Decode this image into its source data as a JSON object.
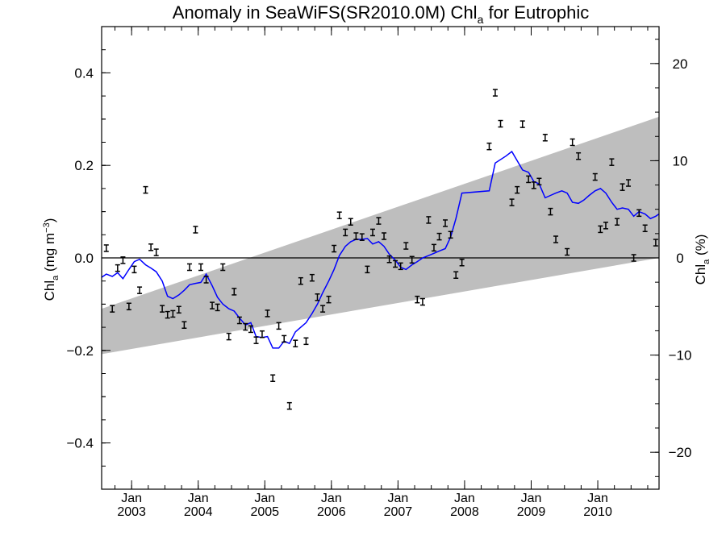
{
  "chart_data": {
    "type": "scatter",
    "title": {
      "main": "Anomaly in SeaWiFS(SR2010.0M) Chl",
      "sub": "a",
      "tail": " for Eutrophic"
    },
    "ylabel_left": {
      "main": "Chl",
      "sub": "a",
      "tail": " (mg m",
      "sup": "−3",
      "end": ")"
    },
    "ylabel_right": {
      "main": "Chl",
      "sub": "a",
      "tail": " (%)"
    },
    "x_range": [
      2002.55,
      2010.92
    ],
    "ylim_left": [
      -0.5,
      0.5
    ],
    "ylim_right": [
      -23.8,
      23.8
    ],
    "x_tick_labels": [
      {
        "x": 2003.0,
        "top": "Jan",
        "bottom": "2003"
      },
      {
        "x": 2004.0,
        "top": "Jan",
        "bottom": "2004"
      },
      {
        "x": 2005.0,
        "top": "Jan",
        "bottom": "2005"
      },
      {
        "x": 2006.0,
        "top": "Jan",
        "bottom": "2006"
      },
      {
        "x": 2007.0,
        "top": "Jan",
        "bottom": "2007"
      },
      {
        "x": 2008.0,
        "top": "Jan",
        "bottom": "2008"
      },
      {
        "x": 2009.0,
        "top": "Jan",
        "bottom": "2009"
      },
      {
        "x": 2010.0,
        "top": "Jan",
        "bottom": "2010"
      }
    ],
    "y_ticks_left": [
      {
        "value": -0.4,
        "label": "−0.4"
      },
      {
        "value": -0.2,
        "label": "−0.2"
      },
      {
        "value": 0.0,
        "label": "0.0"
      },
      {
        "value": 0.2,
        "label": "0.2"
      },
      {
        "value": 0.4,
        "label": "0.4"
      }
    ],
    "y_ticks_right": [
      {
        "value": -20,
        "label": "−20"
      },
      {
        "value": -10,
        "label": "−10"
      },
      {
        "value": 0,
        "label": "0"
      },
      {
        "value": 10,
        "label": "10"
      },
      {
        "value": 20,
        "label": "20"
      }
    ],
    "uncertainty_band": {
      "x": [
        2002.55,
        2010.92
      ],
      "lower": [
        -0.208,
        0.0
      ],
      "upper": [
        -0.11,
        0.305
      ]
    },
    "zero_line": 0.0,
    "points": [
      [
        2002.62,
        0.021
      ],
      [
        2002.71,
        -0.11
      ],
      [
        2002.79,
        -0.022
      ],
      [
        2002.87,
        -0.005
      ],
      [
        2002.96,
        -0.105
      ],
      [
        2003.04,
        -0.025
      ],
      [
        2003.12,
        -0.07
      ],
      [
        2003.21,
        0.147
      ],
      [
        2003.29,
        0.023
      ],
      [
        2003.37,
        0.012
      ],
      [
        2003.46,
        -0.11
      ],
      [
        2003.54,
        -0.123
      ],
      [
        2003.62,
        -0.121
      ],
      [
        2003.71,
        -0.112
      ],
      [
        2003.79,
        -0.145
      ],
      [
        2003.87,
        -0.02
      ],
      [
        2003.96,
        0.061
      ],
      [
        2004.04,
        -0.02
      ],
      [
        2004.12,
        -0.047
      ],
      [
        2004.21,
        -0.103
      ],
      [
        2004.29,
        -0.107
      ],
      [
        2004.37,
        -0.02
      ],
      [
        2004.46,
        -0.17
      ],
      [
        2004.54,
        -0.073
      ],
      [
        2004.62,
        -0.135
      ],
      [
        2004.71,
        -0.149
      ],
      [
        2004.79,
        -0.154
      ],
      [
        2004.87,
        -0.178
      ],
      [
        2004.96,
        -0.165
      ],
      [
        2005.04,
        -0.12
      ],
      [
        2005.12,
        -0.26
      ],
      [
        2005.21,
        -0.147
      ],
      [
        2005.29,
        -0.175
      ],
      [
        2005.37,
        -0.32
      ],
      [
        2005.46,
        -0.185
      ],
      [
        2005.54,
        -0.05
      ],
      [
        2005.62,
        -0.18
      ],
      [
        2005.71,
        -0.043
      ],
      [
        2005.79,
        -0.085
      ],
      [
        2005.87,
        -0.11
      ],
      [
        2005.96,
        -0.09
      ],
      [
        2006.04,
        0.02
      ],
      [
        2006.12,
        0.092
      ],
      [
        2006.21,
        0.055
      ],
      [
        2006.29,
        0.078
      ],
      [
        2006.37,
        0.047
      ],
      [
        2006.46,
        0.045
      ],
      [
        2006.54,
        -0.025
      ],
      [
        2006.62,
        0.055
      ],
      [
        2006.71,
        0.08
      ],
      [
        2006.79,
        0.047
      ],
      [
        2006.87,
        -0.003
      ],
      [
        2006.96,
        -0.013
      ],
      [
        2007.04,
        -0.018
      ],
      [
        2007.12,
        0.026
      ],
      [
        2007.21,
        -0.004
      ],
      [
        2007.29,
        -0.09
      ],
      [
        2007.37,
        -0.095
      ],
      [
        2007.46,
        0.082
      ],
      [
        2007.54,
        0.022
      ],
      [
        2007.62,
        0.046
      ],
      [
        2007.71,
        0.075
      ],
      [
        2007.79,
        0.05
      ],
      [
        2007.87,
        -0.037
      ],
      [
        2007.96,
        -0.01
      ],
      [
        2008.37,
        0.241
      ],
      [
        2008.46,
        0.357
      ],
      [
        2008.54,
        0.29
      ],
      [
        2008.71,
        0.12
      ],
      [
        2008.79,
        0.147
      ],
      [
        2008.87,
        0.289
      ],
      [
        2008.96,
        0.17
      ],
      [
        2009.04,
        0.157
      ],
      [
        2009.12,
        0.165
      ],
      [
        2009.21,
        0.26
      ],
      [
        2009.29,
        0.1
      ],
      [
        2009.37,
        0.04
      ],
      [
        2009.54,
        0.013
      ],
      [
        2009.62,
        0.25
      ],
      [
        2009.71,
        0.22
      ],
      [
        2009.96,
        0.175
      ],
      [
        2010.04,
        0.062
      ],
      [
        2010.12,
        0.07
      ],
      [
        2010.21,
        0.207
      ],
      [
        2010.29,
        0.078
      ],
      [
        2010.37,
        0.153
      ],
      [
        2010.46,
        0.162
      ],
      [
        2010.54,
        0.0
      ],
      [
        2010.62,
        0.097
      ],
      [
        2010.71,
        0.064
      ],
      [
        2010.87,
        0.033
      ]
    ],
    "error_half_height": 0.007,
    "running_mean": [
      [
        2002.55,
        -0.042
      ],
      [
        2002.62,
        -0.035
      ],
      [
        2002.71,
        -0.04
      ],
      [
        2002.79,
        -0.032
      ],
      [
        2002.87,
        -0.045
      ],
      [
        2002.96,
        -0.025
      ],
      [
        2003.04,
        -0.008
      ],
      [
        2003.12,
        -0.003
      ],
      [
        2003.21,
        -0.015
      ],
      [
        2003.29,
        -0.022
      ],
      [
        2003.37,
        -0.03
      ],
      [
        2003.46,
        -0.05
      ],
      [
        2003.54,
        -0.083
      ],
      [
        2003.62,
        -0.088
      ],
      [
        2003.71,
        -0.08
      ],
      [
        2003.79,
        -0.07
      ],
      [
        2003.87,
        -0.058
      ],
      [
        2003.96,
        -0.055
      ],
      [
        2004.04,
        -0.053
      ],
      [
        2004.12,
        -0.035
      ],
      [
        2004.21,
        -0.06
      ],
      [
        2004.29,
        -0.085
      ],
      [
        2004.37,
        -0.1
      ],
      [
        2004.46,
        -0.11
      ],
      [
        2004.54,
        -0.115
      ],
      [
        2004.62,
        -0.13
      ],
      [
        2004.71,
        -0.145
      ],
      [
        2004.79,
        -0.14
      ],
      [
        2004.87,
        -0.17
      ],
      [
        2004.96,
        -0.172
      ],
      [
        2005.04,
        -0.17
      ],
      [
        2005.12,
        -0.195
      ],
      [
        2005.21,
        -0.195
      ],
      [
        2005.29,
        -0.18
      ],
      [
        2005.37,
        -0.185
      ],
      [
        2005.46,
        -0.16
      ],
      [
        2005.54,
        -0.15
      ],
      [
        2005.62,
        -0.14
      ],
      [
        2005.71,
        -0.12
      ],
      [
        2005.79,
        -0.1
      ],
      [
        2005.87,
        -0.075
      ],
      [
        2005.96,
        -0.05
      ],
      [
        2006.04,
        -0.025
      ],
      [
        2006.12,
        0.005
      ],
      [
        2006.21,
        0.025
      ],
      [
        2006.29,
        0.035
      ],
      [
        2006.37,
        0.04
      ],
      [
        2006.46,
        0.04
      ],
      [
        2006.54,
        0.042
      ],
      [
        2006.62,
        0.03
      ],
      [
        2006.71,
        0.035
      ],
      [
        2006.79,
        0.025
      ],
      [
        2006.87,
        0.008
      ],
      [
        2006.96,
        -0.005
      ],
      [
        2007.04,
        -0.02
      ],
      [
        2007.12,
        -0.025
      ],
      [
        2007.21,
        -0.015
      ],
      [
        2007.29,
        -0.008
      ],
      [
        2007.37,
        0.0
      ],
      [
        2007.46,
        0.005
      ],
      [
        2007.54,
        0.01
      ],
      [
        2007.62,
        0.015
      ],
      [
        2007.71,
        0.02
      ],
      [
        2007.79,
        0.045
      ],
      [
        2007.87,
        0.085
      ],
      [
        2007.96,
        0.14
      ],
      [
        2008.37,
        0.145
      ],
      [
        2008.46,
        0.205
      ],
      [
        2008.62,
        0.22
      ],
      [
        2008.71,
        0.23
      ],
      [
        2008.79,
        0.21
      ],
      [
        2008.87,
        0.19
      ],
      [
        2008.96,
        0.185
      ],
      [
        2009.04,
        0.165
      ],
      [
        2009.12,
        0.16
      ],
      [
        2009.21,
        0.13
      ],
      [
        2009.29,
        0.135
      ],
      [
        2009.37,
        0.14
      ],
      [
        2009.46,
        0.145
      ],
      [
        2009.54,
        0.14
      ],
      [
        2009.62,
        0.12
      ],
      [
        2009.71,
        0.118
      ],
      [
        2009.79,
        0.125
      ],
      [
        2009.87,
        0.135
      ],
      [
        2009.96,
        0.145
      ],
      [
        2010.04,
        0.15
      ],
      [
        2010.12,
        0.14
      ],
      [
        2010.21,
        0.12
      ],
      [
        2010.29,
        0.105
      ],
      [
        2010.37,
        0.108
      ],
      [
        2010.46,
        0.105
      ],
      [
        2010.54,
        0.09
      ],
      [
        2010.62,
        0.1
      ],
      [
        2010.71,
        0.095
      ],
      [
        2010.79,
        0.085
      ],
      [
        2010.87,
        0.09
      ],
      [
        2010.92,
        0.095
      ]
    ],
    "colors": {
      "band": "#bebebe",
      "running_mean": "#0000ff",
      "points": "#000000",
      "axes": "#000000"
    },
    "grid": false,
    "legend": "none"
  }
}
